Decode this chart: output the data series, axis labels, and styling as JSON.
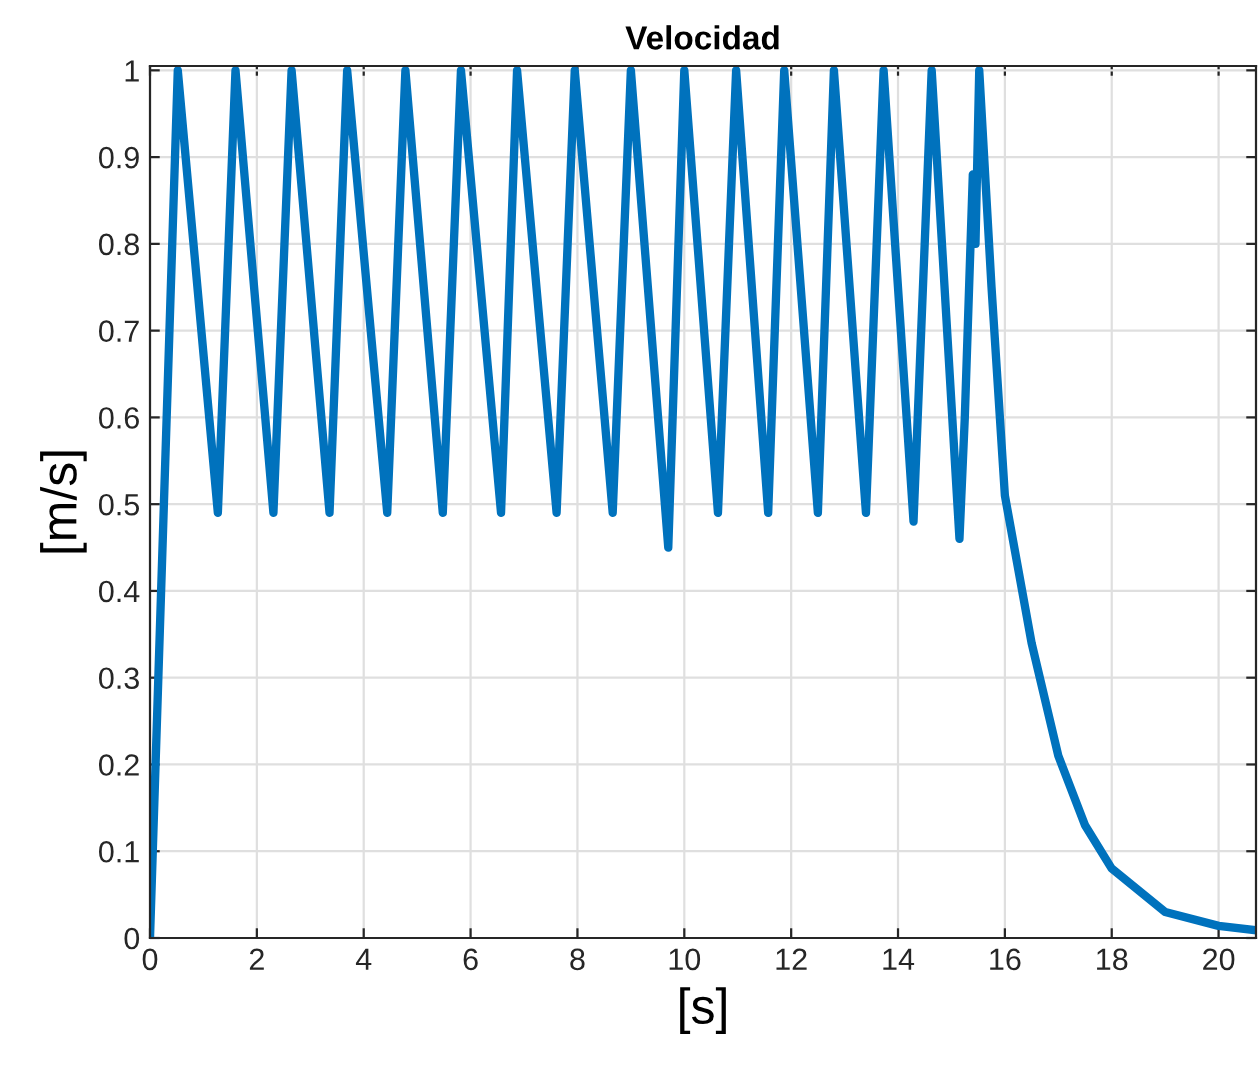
{
  "chart_data": {
    "type": "line",
    "title": "Velocidad",
    "xlabel": "[s]",
    "ylabel": "[m/s]",
    "x": [
      0,
      0.52,
      1.27,
      1.6,
      2.31,
      2.65,
      3.36,
      3.69,
      4.44,
      4.78,
      5.48,
      5.82,
      6.57,
      6.87,
      7.61,
      7.95,
      8.66,
      9.0,
      9.7,
      10.0,
      10.63,
      10.97,
      11.57,
      11.87,
      12.5,
      12.8,
      13.4,
      13.73,
      14.29,
      14.63,
      15.15,
      15.25,
      15.4,
      15.45,
      15.52,
      15.75,
      16.0,
      16.5,
      17.0,
      17.5,
      18.0,
      19.0,
      20.0,
      20.7
    ],
    "series": [
      {
        "color": "#0072bd",
        "values": [
          0,
          1,
          0.49,
          1,
          0.49,
          1,
          0.49,
          1,
          0.49,
          1,
          0.49,
          1,
          0.49,
          1,
          0.49,
          1,
          0.49,
          1,
          0.45,
          1,
          0.49,
          1,
          0.49,
          1,
          0.49,
          1,
          0.49,
          1,
          0.48,
          1,
          0.46,
          0.6,
          0.88,
          0.8,
          1,
          0.75,
          0.51,
          0.34,
          0.21,
          0.13,
          0.08,
          0.03,
          0.014,
          0.009
        ]
      }
    ],
    "xlim": [
      0,
      20.7
    ],
    "ylim": [
      0,
      1.005
    ],
    "xticks": [
      0,
      2,
      4,
      6,
      8,
      10,
      12,
      14,
      16,
      18,
      20
    ],
    "yticks": [
      0,
      0.1,
      0.2,
      0.3,
      0.4,
      0.5,
      0.6,
      0.7,
      0.8,
      0.9,
      1
    ],
    "grid": true,
    "line_style": "solid"
  }
}
